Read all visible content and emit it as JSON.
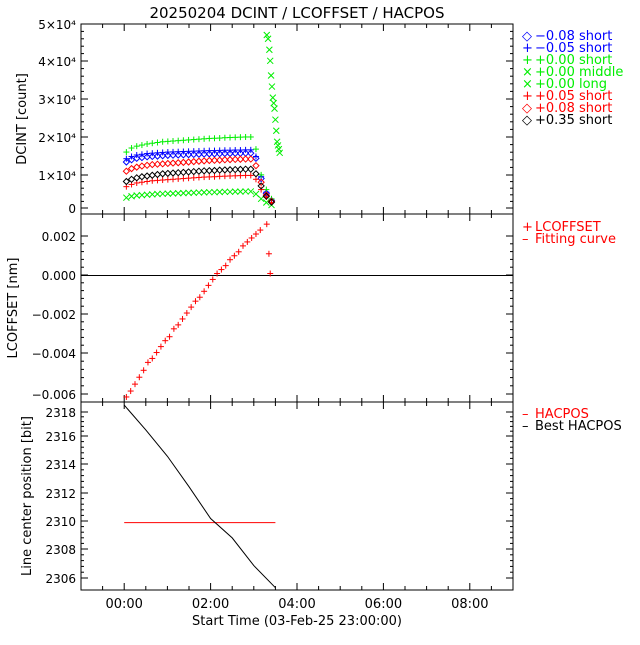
{
  "title": "20250204 DCINT / LCOFFSET / HACPOS",
  "x_axis": {
    "label": "Start Time (03-Feb-25 23:00:00)",
    "ticks": [
      "00:00",
      "02:00",
      "04:00",
      "06:00",
      "08:00"
    ],
    "tick_hours": [
      0,
      2,
      4,
      6,
      8
    ],
    "range_hours": [
      -1,
      9
    ]
  },
  "colors": {
    "black": "#000000",
    "blue": "#0000ff",
    "green": "#00ee00",
    "red": "#ff0000"
  },
  "panels": {
    "dcint": {
      "ylabel": "DCINT [count]",
      "tick_labels": [
        "0",
        "1×10⁴",
        "2×10⁴",
        "3×10⁴",
        "4×10⁴",
        "5×10⁴"
      ],
      "legend": [
        {
          "marker": "◇",
          "text": "−0.08 short",
          "color": "#0000ff"
        },
        {
          "marker": "+",
          "text": "−0.05 short",
          "color": "#0000ff"
        },
        {
          "marker": "+",
          "text": "+0.00 short",
          "color": "#00ee00"
        },
        {
          "marker": "×",
          "text": "+0.00 middle",
          "color": "#00ee00"
        },
        {
          "marker": "×",
          "text": "+0.00 long",
          "color": "#00ee00"
        },
        {
          "marker": "+",
          "text": "+0.05 short",
          "color": "#ff0000"
        },
        {
          "marker": "◇",
          "text": "+0.08 short",
          "color": "#ff0000"
        },
        {
          "marker": "◇",
          "text": "+0.35 short",
          "color": "#000000"
        }
      ]
    },
    "lcoffset": {
      "ylabel": "LCOFFSET [nm]",
      "tick_labels": [
        "−0.006",
        "−0.004",
        "−0.002",
        "0.000",
        "0.002"
      ],
      "legend": [
        {
          "marker": "+",
          "text": "LCOFFSET",
          "color": "#ff0000"
        },
        {
          "marker": "–",
          "text": "Fitting curve",
          "color": "#ff0000"
        }
      ]
    },
    "hacpos": {
      "ylabel": "Line center position [bit]",
      "tick_labels": [
        "2306",
        "2308",
        "2310",
        "2312",
        "2314",
        "2316",
        "2318"
      ],
      "legend": [
        {
          "marker": "–",
          "text": "HACPOS",
          "color": "#ff0000"
        },
        {
          "marker": "–",
          "text": "Best HACPOS",
          "color": "#000000"
        }
      ]
    }
  },
  "chart_data": [
    {
      "type": "scatter",
      "title": "20250204 DCINT / LCOFFSET / HACPOS",
      "xlabel": "Start Time (03-Feb-25 23:00:00)",
      "ylabel": "DCINT [count]",
      "xlim_hours": [
        -1,
        9
      ],
      "ylim": [
        -1000,
        51000
      ],
      "x_hours_start": 0.05,
      "x_hours_step": 0.12,
      "series": [
        {
          "name": "-0.08 short",
          "marker": "diamond",
          "color": "#0000ff",
          "values": [
            12500,
            13100,
            13500,
            13700,
            13900,
            14000,
            14100,
            14200,
            14300,
            14350,
            14400,
            14450,
            14500,
            14550,
            14600,
            14650,
            14700,
            14700,
            14750,
            14800,
            14800,
            14850,
            14850,
            14900,
            14900,
            13500,
            8000,
            4000,
            2000
          ]
        },
        {
          "name": "-0.05 short",
          "marker": "plus",
          "color": "#0000ff",
          "values": [
            13400,
            14000,
            14400,
            14600,
            14800,
            14900,
            15000,
            15100,
            15200,
            15250,
            15300,
            15350,
            15400,
            15450,
            15500,
            15550,
            15600,
            15600,
            15650,
            15700,
            15700,
            15750,
            15750,
            15800,
            15800,
            14000,
            8500,
            4300,
            2200
          ]
        },
        {
          "name": "+0.00 short",
          "marker": "plus",
          "color": "#00ee00",
          "values": [
            15200,
            16300,
            16800,
            17100,
            17400,
            17600,
            17800,
            18000,
            18100,
            18200,
            18300,
            18400,
            18500,
            18600,
            18700,
            18800,
            18900,
            18950,
            19000,
            19100,
            19150,
            19200,
            19250,
            19300,
            19300,
            16000,
            9000,
            5000,
            2500
          ]
        },
        {
          "name": "+0.00 middle",
          "marker": "x",
          "color": "#00ee00",
          "values": [
            2800,
            3200,
            3400,
            3500,
            3600,
            3700,
            3800,
            3850,
            3900,
            3950,
            4000,
            4050,
            4100,
            4150,
            4200,
            4250,
            4300,
            4300,
            4350,
            4400,
            4400,
            4450,
            4450,
            4500,
            4500,
            3800,
            2500,
            1500,
            800
          ]
        },
        {
          "name": "+0.05 short",
          "marker": "plus",
          "color": "#ff0000",
          "values": [
            5800,
            6400,
            6800,
            7000,
            7200,
            7400,
            7500,
            7600,
            7700,
            7800,
            7900,
            8000,
            8100,
            8200,
            8300,
            8400,
            8450,
            8500,
            8600,
            8650,
            8700,
            8750,
            8800,
            8850,
            8850,
            7800,
            5000,
            3000,
            1500
          ]
        },
        {
          "name": "+0.08 short",
          "marker": "diamond",
          "color": "#ff0000",
          "values": [
            10000,
            10700,
            11100,
            11400,
            11600,
            11800,
            11900,
            12000,
            12100,
            12200,
            12300,
            12400,
            12500,
            12600,
            12700,
            12800,
            12900,
            12950,
            13000,
            13100,
            13150,
            13200,
            13250,
            13300,
            13300,
            11500,
            7000,
            3500,
            1800
          ]
        },
        {
          "name": "+0.35 short",
          "marker": "diamond",
          "color": "#000000",
          "values": [
            7200,
            7800,
            8200,
            8500,
            8700,
            8900,
            9100,
            9300,
            9400,
            9500,
            9600,
            9700,
            9800,
            9900,
            10000,
            10100,
            10150,
            10200,
            10300,
            10350,
            10400,
            10450,
            10500,
            10550,
            10550,
            9300,
            6000,
            3200,
            1600
          ]
        }
      ],
      "long_series": {
        "name": "+0.00 long",
        "marker": "x",
        "color": "#00ee00",
        "points": [
          [
            3.3,
            47000
          ],
          [
            3.33,
            46000
          ],
          [
            3.36,
            43000
          ],
          [
            3.38,
            40000
          ],
          [
            3.4,
            36000
          ],
          [
            3.42,
            33000
          ],
          [
            3.44,
            30000
          ],
          [
            3.46,
            28500
          ],
          [
            3.48,
            27000
          ],
          [
            3.5,
            24000
          ],
          [
            3.52,
            21000
          ],
          [
            3.54,
            18000
          ],
          [
            3.56,
            17000
          ],
          [
            3.58,
            16000
          ],
          [
            3.6,
            15000
          ]
        ]
      }
    },
    {
      "type": "scatter",
      "ylabel": "LCOFFSET [nm]",
      "ylim": [
        -0.0065,
        0.0029
      ],
      "reference_line": 0,
      "series": [
        {
          "name": "LCOFFSET",
          "marker": "plus",
          "color": "#ff0000",
          "x_hours": [
            0.05,
            0.15,
            0.25,
            0.35,
            0.45,
            0.55,
            0.65,
            0.75,
            0.85,
            0.95,
            1.05,
            1.15,
            1.25,
            1.35,
            1.45,
            1.55,
            1.65,
            1.75,
            1.85,
            1.95,
            2.05,
            2.15,
            2.25,
            2.35,
            2.45,
            2.55,
            2.65,
            2.75,
            2.85,
            2.95,
            3.05,
            3.15,
            3.3,
            3.35,
            3.38
          ],
          "values": [
            -0.00615,
            -0.00585,
            -0.0055,
            -0.00515,
            -0.0048,
            -0.0044,
            -0.0042,
            -0.0039,
            -0.0036,
            -0.0033,
            -0.0031,
            -0.0027,
            -0.0025,
            -0.0022,
            -0.0019,
            -0.0016,
            -0.0013,
            -0.0011,
            -0.0008,
            -0.0005,
            -0.0002,
            0.0001,
            0.0003,
            0.0005,
            0.0008,
            0.001,
            0.0012,
            0.0015,
            0.0017,
            0.0019,
            0.0021,
            0.0023,
            0.0026,
            0.0011,
            0.0001
          ]
        }
      ]
    },
    {
      "type": "line",
      "ylabel": "Line center position [bit]",
      "ylim": [
        2305.2,
        2318.8
      ],
      "series": [
        {
          "name": "HACPOS",
          "color": "#ff0000",
          "x_hours": [
            0,
            3.5
          ],
          "values": [
            2310,
            2310
          ]
        },
        {
          "name": "Best HACPOS",
          "color": "#000000",
          "x_hours": [
            0,
            0.5,
            1,
            1.5,
            2,
            2.5,
            3,
            3.5
          ],
          "values": [
            2318.5,
            2316.7,
            2314.8,
            2312.6,
            2310.3,
            2308.9,
            2306.9,
            2305.3
          ]
        }
      ]
    }
  ]
}
